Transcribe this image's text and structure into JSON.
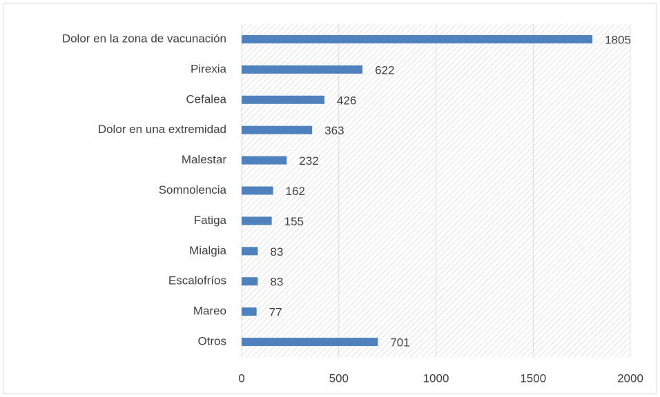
{
  "chart_data": {
    "type": "bar",
    "orientation": "horizontal",
    "categories": [
      "Dolor en la zona de vacunación",
      "Pirexia",
      "Cefalea",
      "Dolor en una extremidad",
      "Malestar",
      "Somnolencia",
      "Fatiga",
      "Mialgia",
      "Escalofríos",
      "Mareo",
      "Otros"
    ],
    "values": [
      1805,
      622,
      426,
      363,
      232,
      162,
      155,
      83,
      83,
      77,
      701
    ],
    "color": "#4f81bd",
    "xlim": [
      0,
      2000
    ],
    "xticks": [
      0,
      500,
      1000,
      1500,
      2000
    ],
    "grid": true
  }
}
